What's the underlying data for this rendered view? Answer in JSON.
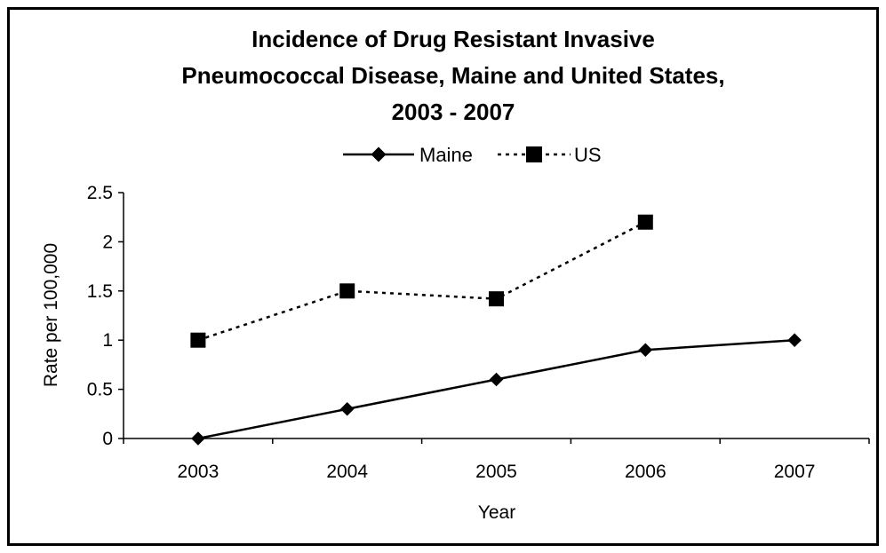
{
  "chart_data": {
    "type": "line",
    "title": "Incidence of Drug Resistant Invasive Pneumococcal Disease, Maine and United States, 2003 - 2007",
    "title_lines": [
      "Incidence of Drug Resistant Invasive",
      "Pneumococcal Disease, Maine and United States,",
      "2003 - 2007"
    ],
    "xlabel": "Year",
    "ylabel": "Rate per 100,000",
    "categories": [
      "2003",
      "2004",
      "2005",
      "2006",
      "2007"
    ],
    "ylim": [
      0,
      2.5
    ],
    "yticks": [
      "0",
      "0.5",
      "1",
      "1.5",
      "2",
      "2.5"
    ],
    "legend_position": "top-center",
    "grid": false,
    "series": [
      {
        "name": "Maine",
        "values": [
          0,
          0.3,
          0.6,
          0.9,
          1.0
        ],
        "marker": "diamond",
        "line_style": "solid",
        "color": "#000000"
      },
      {
        "name": "US",
        "values": [
          1.0,
          1.5,
          1.42,
          2.2,
          null
        ],
        "marker": "square",
        "line_style": "dotted",
        "color": "#000000"
      }
    ]
  }
}
